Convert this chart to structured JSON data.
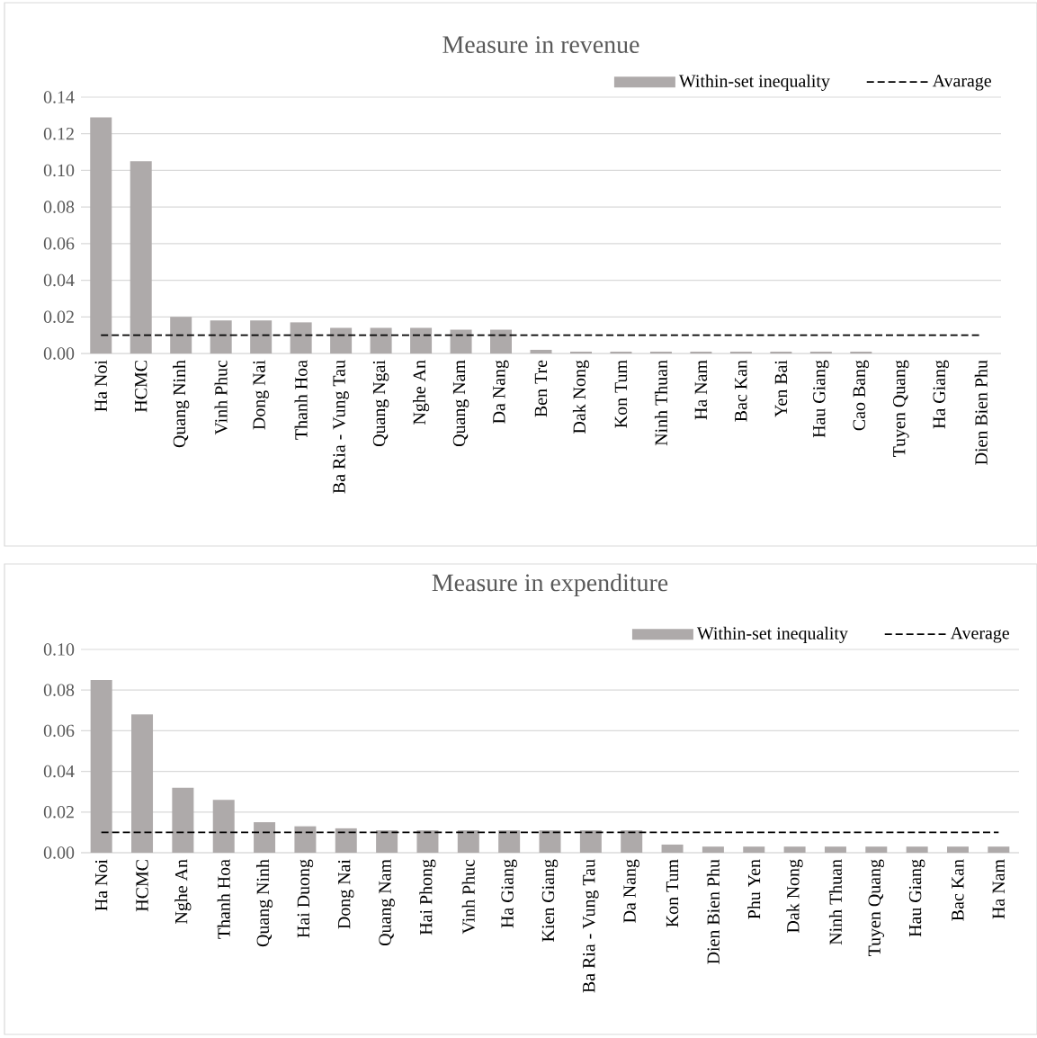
{
  "chart_data": [
    {
      "type": "bar",
      "title": "Measure in revenue",
      "categories": [
        "Ha Noi",
        "HCMC",
        "Quang Ninh",
        "Vinh Phuc",
        "Dong Nai",
        "Thanh Hoa",
        "Ba Ria - Vung Tau",
        "Quang Ngai",
        "Nghe An",
        "Quang Nam",
        "Da Nang",
        "Ben Tre",
        "Dak Nong",
        "Kon Tum",
        "Ninh Thuan",
        "Ha Nam",
        "Bac Kan",
        "Yen Bai",
        "Hau Giang",
        "Cao Bang",
        "Tuyen Quang",
        "Ha Giang",
        "Dien Bien Phu"
      ],
      "series": [
        {
          "name": "Within-set inequality",
          "color": "#aeaaaa",
          "values": [
            0.129,
            0.105,
            0.02,
            0.018,
            0.018,
            0.017,
            0.014,
            0.014,
            0.014,
            0.013,
            0.013,
            0.002,
            0.001,
            0.001,
            0.001,
            0.001,
            0.001,
            0.001,
            0.001,
            0.001,
            0,
            0,
            0
          ]
        },
        {
          "name": "Avarage",
          "type": "line",
          "line_style": "dashed",
          "color": "#000000",
          "values": [
            0.01,
            0.01,
            0.01,
            0.01,
            0.01,
            0.01,
            0.01,
            0.01,
            0.01,
            0.01,
            0.01,
            0.01,
            0.01,
            0.01,
            0.01,
            0.01,
            0.01,
            0.01,
            0.01,
            0.01,
            0.01,
            0.01,
            0.01
          ]
        }
      ],
      "ylim": [
        0,
        0.14
      ],
      "yticks": [
        {
          "value": 0,
          "label": "0.00"
        },
        {
          "value": 0.02,
          "label": "0.02"
        },
        {
          "value": 0.04,
          "label": "0.04"
        },
        {
          "value": 0.06,
          "label": "0.06"
        },
        {
          "value": 0.08,
          "label": "0.08"
        },
        {
          "value": 0.1,
          "label": "0.10"
        },
        {
          "value": 0.12,
          "label": "0.12"
        },
        {
          "value": 0.14,
          "label": "0.14"
        }
      ],
      "grid": "y",
      "legend": "top right"
    },
    {
      "type": "bar",
      "title": "Measure in expenditure",
      "categories": [
        "Ha Noi",
        "HCMC",
        "Nghe An",
        "Thanh Hoa",
        "Quang Ninh",
        "Hai Duong",
        "Dong Nai",
        "Quang Nam",
        "Hai Phong",
        "Vinh Phuc",
        "Ha Giang",
        "Kien Giang",
        "Ba Ria - Vung Tau",
        "Da Nang",
        "Kon Tum",
        "Dien Bien Phu",
        "Phu Yen",
        "Dak Nong",
        "Ninh Thuan",
        "Tuyen Quang",
        "Hau Giang",
        "Bac Kan",
        "Ha Nam"
      ],
      "series": [
        {
          "name": "Within-set inequality",
          "color": "#aeaaaa",
          "values": [
            0.085,
            0.068,
            0.032,
            0.026,
            0.015,
            0.013,
            0.012,
            0.011,
            0.011,
            0.011,
            0.011,
            0.011,
            0.011,
            0.011,
            0.004,
            0.003,
            0.003,
            0.003,
            0.003,
            0.003,
            0.003,
            0.003,
            0.003
          ]
        },
        {
          "name": "Average",
          "type": "line",
          "line_style": "dashed",
          "color": "#000000",
          "values": [
            0.01,
            0.01,
            0.01,
            0.01,
            0.01,
            0.01,
            0.01,
            0.01,
            0.01,
            0.01,
            0.01,
            0.01,
            0.01,
            0.01,
            0.01,
            0.01,
            0.01,
            0.01,
            0.01,
            0.01,
            0.01,
            0.01,
            0.01
          ]
        }
      ],
      "ylim": [
        0,
        0.1
      ],
      "yticks": [
        {
          "value": 0,
          "label": "0.00"
        },
        {
          "value": 0.02,
          "label": "0.02"
        },
        {
          "value": 0.04,
          "label": "0.04"
        },
        {
          "value": 0.06,
          "label": "0.06"
        },
        {
          "value": 0.08,
          "label": "0.08"
        },
        {
          "value": 0.1,
          "label": "0.10"
        }
      ],
      "grid": "y",
      "legend": "top right"
    }
  ]
}
